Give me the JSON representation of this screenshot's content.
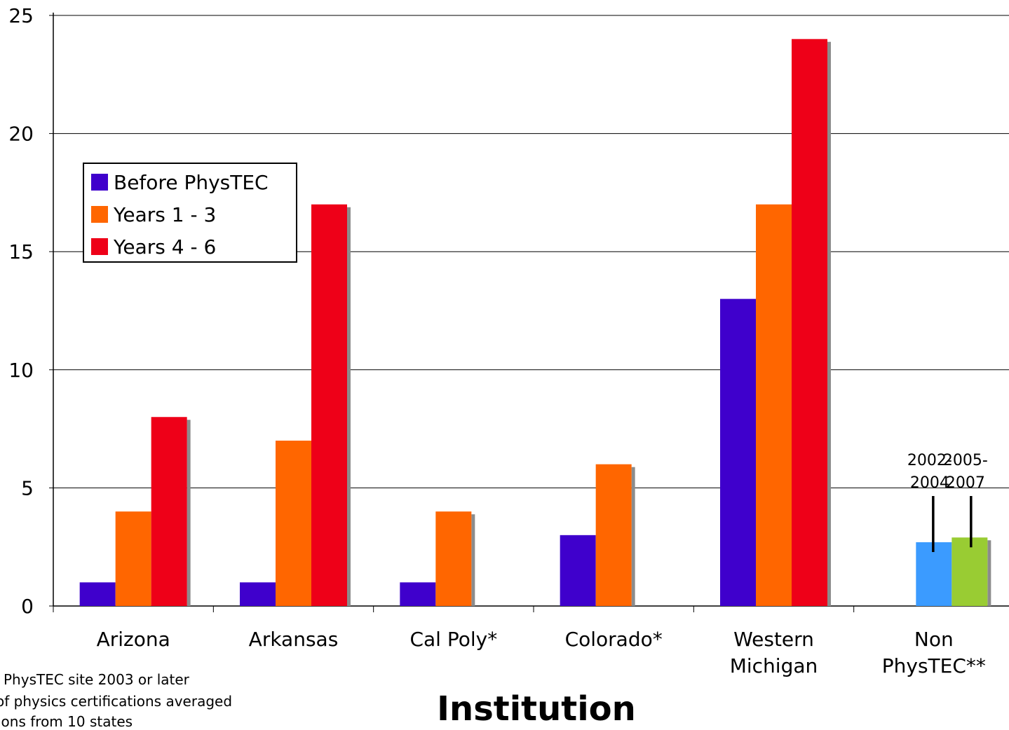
{
  "chart_data": {
    "type": "bar",
    "title": "",
    "xlabel": "Institution",
    "ylabel": "",
    "ylim": [
      0,
      25
    ],
    "yticks": [
      "0",
      "5",
      "10",
      "15",
      "20",
      "25"
    ],
    "categories": [
      "Arizona",
      "Arkansas",
      "Cal Poly*",
      "Colorado*",
      "Western Michigan",
      "Non PhysTEC**"
    ],
    "category_lines": [
      [
        "Arizona"
      ],
      [
        "Arkansas"
      ],
      [
        "Cal Poly*"
      ],
      [
        "Colorado*"
      ],
      [
        "Western",
        "Michigan"
      ],
      [
        "Non",
        "PhysTEC**"
      ]
    ],
    "series": [
      {
        "name": "Before PhysTEC",
        "color": "#3F00CC",
        "values": [
          1,
          1,
          1,
          3,
          13,
          null
        ]
      },
      {
        "name": "Years 1 - 3",
        "color": "#FF6600",
        "values": [
          4,
          7,
          4,
          6,
          17,
          null
        ]
      },
      {
        "name": "Years 4 - 6",
        "color": "#EE0018",
        "values": [
          8,
          17,
          null,
          null,
          24,
          null
        ]
      }
    ],
    "extra_bars": [
      {
        "category": "Non PhysTEC**",
        "label_lines": [
          "2002-",
          "2004"
        ],
        "value": 2.7,
        "color": "#3B9BFF"
      },
      {
        "category": "Non PhysTEC**",
        "label_lines": [
          "2005-",
          "2007"
        ],
        "value": 2.9,
        "color": "#99CC33"
      }
    ],
    "legend_position": "upper-left",
    "grid": true
  },
  "footnotes": [
    "PhysTEC site 2003 or later",
    "of physics certifications averaged",
    "ions from 10 states"
  ]
}
